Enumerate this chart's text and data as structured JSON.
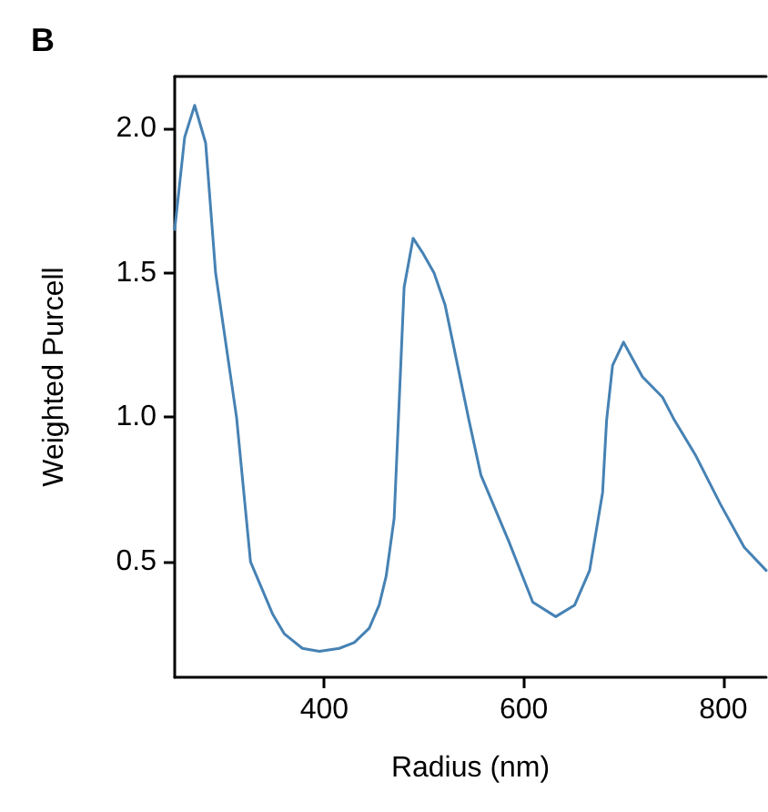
{
  "chart_data": {
    "type": "line",
    "title": "B",
    "xlabel": "Radius (nm)",
    "ylabel": "Weighted Purcell",
    "x": [
      250,
      260,
      270,
      281,
      291,
      312,
      326,
      348,
      360,
      378,
      395,
      415,
      430,
      445,
      455,
      462,
      470,
      480,
      489,
      498.5,
      510,
      521,
      545,
      557,
      585,
      609,
      632,
      651,
      666,
      679,
      683,
      689,
      700,
      719,
      739,
      751,
      772,
      797,
      821,
      843
    ],
    "series": [
      {
        "color": "#4682b4",
        "values": [
          1.65,
          1.97,
          2.08,
          1.95,
          1.5,
          1.0,
          0.5,
          0.32,
          0.25,
          0.2,
          0.19,
          0.2,
          0.22,
          0.27,
          0.35,
          0.45,
          0.65,
          1.45,
          1.62,
          1.57,
          1.5,
          1.39,
          0.99,
          0.8,
          0.57,
          0.36,
          0.31,
          0.35,
          0.47,
          0.74,
          0.99,
          1.18,
          1.26,
          1.14,
          1.07,
          0.99,
          0.87,
          0.7,
          0.55,
          0.47
        ]
      }
    ],
    "xlim": [
      250,
      843
    ],
    "ylim": [
      0.1,
      2.18
    ],
    "xticks": [
      400,
      600,
      800
    ],
    "yticks": [
      0.5,
      {
        "value": 1.0,
        "label": "1.0"
      },
      1.5,
      {
        "value": 2.0,
        "label": "2.0"
      }
    ],
    "marker": "none",
    "line_style": "solid"
  }
}
